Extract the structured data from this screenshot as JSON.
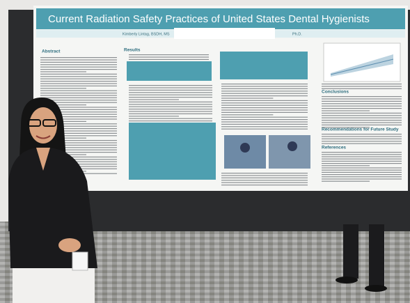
{
  "poster": {
    "title": "Current Radiation Safety Practices of United States Dental Hygienists",
    "authors": "Kimberly Lintag, BSDH, MS",
    "co_author": "Ph.D.",
    "sections": [
      "Abstract",
      "Results",
      "Conclusions",
      "Recommendations for Future Study",
      "References"
    ]
  }
}
